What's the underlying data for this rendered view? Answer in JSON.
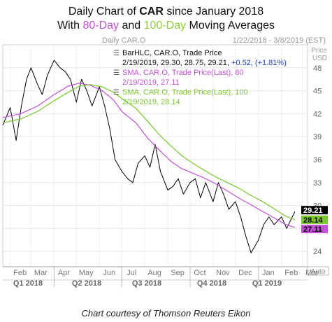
{
  "title": {
    "line1_prefix": "Daily Chart of ",
    "line1_ticker": "CAR",
    "line1_suffix": " since January 2018",
    "line2_prefix": "With ",
    "line2_sma80": "80-Day",
    "line2_mid": " and ",
    "line2_sma100": "100-Day",
    "line2_suffix": " Moving Averages"
  },
  "header": {
    "left": "Daily CAR.O",
    "right": "1/22/2018 - 3/8/2019 (EST)"
  },
  "legend": {
    "bar_title": "BarHLC, CAR.O, Trade Price",
    "bar_values": "2/19/2019, 29.30, 28.75, 29.21, ",
    "bar_change": "+0.52, (+1.81%)",
    "sma80_title": "SMA, CAR.O, Trade Price(Last), 80",
    "sma80_values": "2/19/2019, 27.11",
    "sma100_title": "SMA, CAR.O, Trade Price(Last), 100",
    "sma100_values": "2/19/2019, 28.14"
  },
  "price_unit": "Price",
  "price_currency": "USD",
  "auto_label": "Auto",
  "credit": "Chart courtesy of Thomson Reuters Eikon",
  "colors": {
    "price": "#000000",
    "sma80": "#c44fd6",
    "sma100": "#7bc62d",
    "change": "#1a3cc8"
  },
  "chart_data": {
    "type": "line",
    "title": "Daily Chart of CAR since January 2018",
    "subtitle": "With 80-Day and 100-Day Moving Averages",
    "xlabel": "",
    "ylabel": "Price",
    "ylim": [
      22,
      51
    ],
    "yticks": [
      24,
      27,
      30,
      33,
      36,
      39,
      42,
      45,
      48
    ],
    "month_ticks": [
      "Feb",
      "Mar",
      "Apr",
      "May",
      "Jun",
      "Jul",
      "Aug",
      "Sep",
      "Oct",
      "Nov",
      "Dec",
      "Jan",
      "Feb",
      "Mar"
    ],
    "quarter_ticks": [
      "Q1 2018",
      "Q2 2018",
      "Q3 2018",
      "Q4 2018",
      "Q1 2019"
    ],
    "grid": true,
    "last_values": {
      "price": 29.21,
      "sma100": 28.14,
      "sma80": 27.11
    },
    "series": [
      {
        "name": "CAR.O",
        "x": [
          "2018-01-22",
          "2018-02-01",
          "2018-02-09",
          "2018-02-16",
          "2018-02-23",
          "2018-03-01",
          "2018-03-09",
          "2018-03-16",
          "2018-03-23",
          "2018-04-01",
          "2018-04-09",
          "2018-04-16",
          "2018-04-23",
          "2018-05-01",
          "2018-05-08",
          "2018-05-15",
          "2018-05-22",
          "2018-06-01",
          "2018-06-08",
          "2018-06-15",
          "2018-06-22",
          "2018-07-01",
          "2018-07-09",
          "2018-07-16",
          "2018-07-23",
          "2018-08-01",
          "2018-08-08",
          "2018-08-15",
          "2018-08-22",
          "2018-09-01",
          "2018-09-08",
          "2018-09-15",
          "2018-09-22",
          "2018-10-01",
          "2018-10-08",
          "2018-10-15",
          "2018-10-22",
          "2018-11-01",
          "2018-11-08",
          "2018-11-15",
          "2018-11-22",
          "2018-12-01",
          "2018-12-08",
          "2018-12-15",
          "2018-12-22",
          "2019-01-01",
          "2019-01-08",
          "2019-01-15",
          "2019-01-22",
          "2019-02-01",
          "2019-02-08",
          "2019-02-19"
        ],
        "y": [
          40.5,
          42.8,
          38.5,
          43.0,
          46.5,
          48.0,
          46.0,
          44.5,
          47.0,
          49.0,
          48.0,
          47.5,
          46.5,
          43.5,
          46.5,
          45.0,
          43.0,
          45.5,
          43.0,
          40.0,
          36.0,
          34.5,
          33.5,
          33.0,
          35.5,
          36.5,
          35.0,
          38.0,
          34.5,
          32.0,
          32.5,
          33.5,
          31.5,
          33.0,
          33.5,
          31.0,
          33.0,
          30.5,
          33.0,
          31.5,
          29.5,
          30.5,
          28.5,
          26.0,
          23.8,
          25.5,
          27.5,
          28.5,
          27.5,
          28.5,
          27.0,
          29.21
        ]
      },
      {
        "name": "SMA 80",
        "x": [
          "2018-01-22",
          "2018-02-15",
          "2018-03-10",
          "2018-04-01",
          "2018-04-20",
          "2018-05-05",
          "2018-05-20",
          "2018-06-05",
          "2018-06-20",
          "2018-07-01",
          "2018-07-20",
          "2018-08-05",
          "2018-08-20",
          "2018-09-05",
          "2018-09-20",
          "2018-10-05",
          "2018-10-20",
          "2018-11-05",
          "2018-11-20",
          "2018-12-05",
          "2018-12-20",
          "2019-01-05",
          "2019-01-20",
          "2019-02-05",
          "2019-02-19"
        ],
        "y": [
          41.5,
          42.0,
          43.0,
          44.5,
          45.6,
          46.0,
          45.7,
          45.0,
          43.8,
          42.3,
          40.8,
          38.8,
          37.3,
          35.8,
          34.8,
          34.2,
          33.6,
          32.8,
          31.9,
          31.0,
          30.2,
          29.3,
          28.5,
          27.6,
          27.11
        ]
      },
      {
        "name": "SMA 100",
        "x": [
          "2018-01-22",
          "2018-02-15",
          "2018-03-10",
          "2018-04-01",
          "2018-04-20",
          "2018-05-05",
          "2018-05-20",
          "2018-06-05",
          "2018-06-20",
          "2018-07-01",
          "2018-07-20",
          "2018-08-05",
          "2018-08-20",
          "2018-09-05",
          "2018-09-20",
          "2018-10-05",
          "2018-10-20",
          "2018-11-05",
          "2018-11-20",
          "2018-12-05",
          "2018-12-20",
          "2019-01-05",
          "2019-01-20",
          "2019-02-05",
          "2019-02-19"
        ],
        "y": [
          40.8,
          41.3,
          42.3,
          43.7,
          44.8,
          45.6,
          45.8,
          45.5,
          44.8,
          44.0,
          42.7,
          41.0,
          39.3,
          37.8,
          36.5,
          35.5,
          34.6,
          33.7,
          33.0,
          32.3,
          31.4,
          30.6,
          29.7,
          28.7,
          28.14
        ]
      }
    ]
  }
}
